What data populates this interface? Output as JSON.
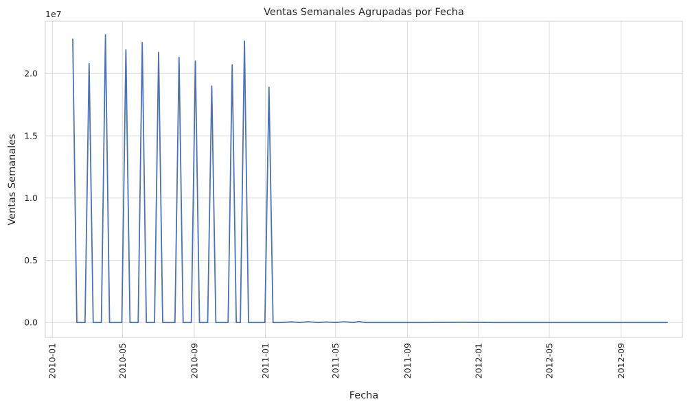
{
  "chart_data": {
    "type": "line",
    "title": "Ventas Semanales Agrupadas por Fecha",
    "xlabel": "Fecha",
    "ylabel": "Ventas Semanales",
    "y_offset_label": "1e7",
    "x_tick_labels": [
      "2010-01",
      "2010-05",
      "2010-09",
      "2011-01",
      "2011-05",
      "2011-09",
      "2012-01",
      "2012-05",
      "2012-09"
    ],
    "y_tick_labels": [
      "0.0",
      "0.5",
      "1.0",
      "1.5",
      "2.0"
    ],
    "y_ticks": [
      0,
      0.5,
      1.0,
      1.5,
      2.0
    ],
    "y_scale_multiplier": 10000000,
    "xlim": [
      "2009-12-20",
      "2012-12-15"
    ],
    "ylim": [
      -0.12,
      2.42
    ],
    "grid": true,
    "line_color": "#4c72b0",
    "series": [
      {
        "x": [
          "2010-02-05",
          "2010-02-12",
          "2010-02-19",
          "2010-02-26",
          "2010-03-05",
          "2010-03-12",
          "2010-03-19",
          "2010-03-26",
          "2010-04-02",
          "2010-04-09",
          "2010-04-16",
          "2010-04-23",
          "2010-04-30",
          "2010-05-07",
          "2010-05-14",
          "2010-05-21",
          "2010-05-28",
          "2010-06-04",
          "2010-06-11",
          "2010-06-18",
          "2010-06-25",
          "2010-07-02",
          "2010-07-09",
          "2010-07-16",
          "2010-07-23",
          "2010-07-30",
          "2010-08-06",
          "2010-08-13",
          "2010-08-20",
          "2010-08-27",
          "2010-09-03",
          "2010-09-10",
          "2010-09-17",
          "2010-09-24",
          "2010-10-01",
          "2010-10-08",
          "2010-10-15",
          "2010-10-22",
          "2010-10-29",
          "2010-11-05",
          "2010-11-12",
          "2010-11-19",
          "2010-11-26",
          "2010-12-03",
          "2010-12-10",
          "2010-12-17",
          "2010-12-24",
          "2010-12-31",
          "2011-01-07",
          "2011-01-14",
          "2011-01-21",
          "2011-01-28",
          "2011-02-15",
          "2011-03-01",
          "2011-03-15",
          "2011-04-01",
          "2011-04-15",
          "2011-05-01",
          "2011-05-15",
          "2011-06-01",
          "2011-06-10",
          "2011-06-20",
          "2011-08-01",
          "2011-10-01",
          "2011-12-01",
          "2012-02-01",
          "2012-04-01",
          "2012-06-01",
          "2012-08-01",
          "2012-10-01",
          "2012-11-20"
        ],
        "y": [
          2.28,
          0.0,
          0.0,
          0.0,
          2.08,
          0.0,
          0.0,
          0.0,
          2.31,
          0.0,
          0.0,
          0.0,
          0.0,
          2.19,
          0.0,
          0.0,
          0.0,
          2.25,
          0.0,
          0.0,
          0.0,
          2.17,
          0.0,
          0.0,
          0.0,
          0.0,
          2.13,
          0.0,
          0.0,
          0.0,
          2.1,
          0.0,
          0.0,
          0.0,
          1.9,
          0.0,
          0.0,
          0.0,
          0.0,
          2.07,
          0.0,
          0.0,
          2.26,
          0.0,
          0.0,
          0.0,
          0.0,
          0.0,
          1.89,
          0.0,
          0.0,
          0.0,
          0.005,
          0.0,
          0.006,
          0.0,
          0.004,
          0.0,
          0.006,
          0.0,
          0.008,
          0.0,
          0.0,
          0.0,
          0.002,
          0.0,
          0.0,
          0.0,
          0.0,
          0.0,
          0.0
        ]
      }
    ]
  }
}
